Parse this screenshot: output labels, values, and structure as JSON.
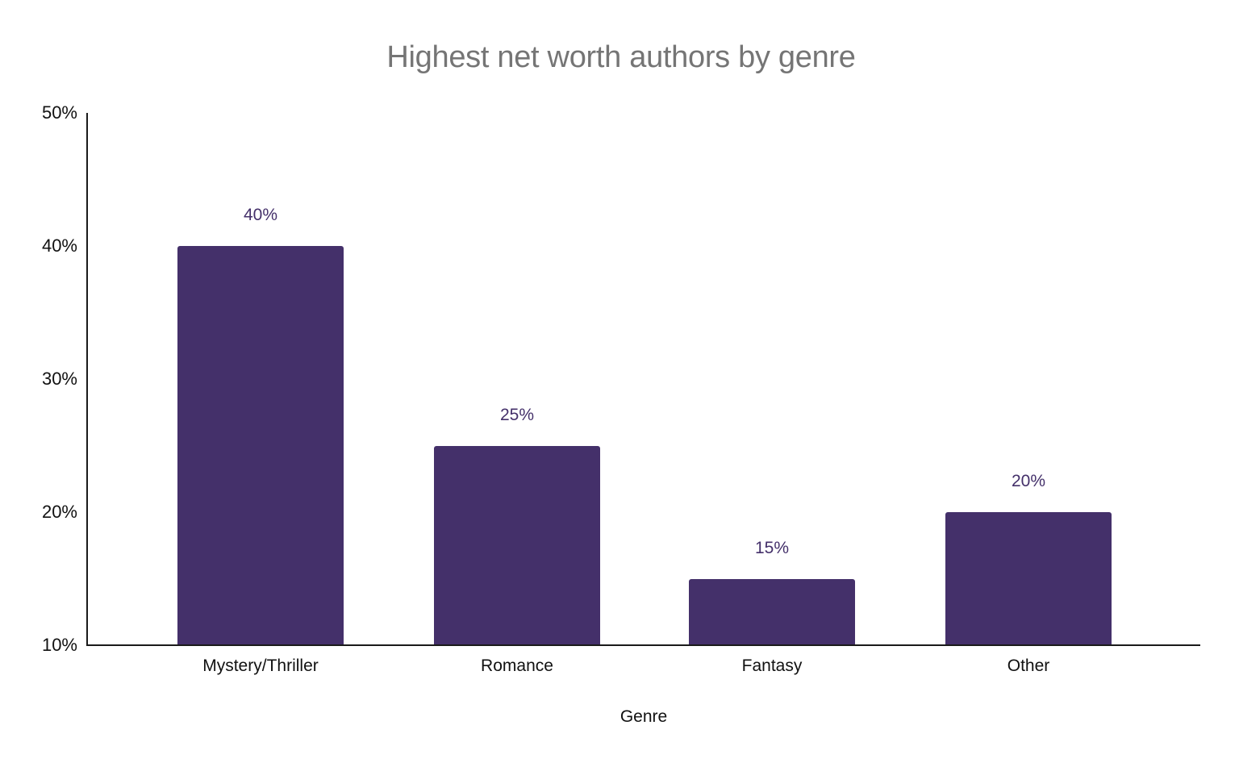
{
  "chart_data": {
    "type": "bar",
    "title": "Highest net worth authors by genre",
    "xlabel": "Genre",
    "ylabel": "",
    "categories": [
      "Mystery/Thriller",
      "Romance",
      "Fantasy",
      "Other"
    ],
    "values": [
      40,
      25,
      15,
      20
    ],
    "value_labels": [
      "40%",
      "25%",
      "15%",
      "20%"
    ],
    "ylim": [
      10,
      50
    ],
    "yticks": [
      10,
      20,
      30,
      40,
      50
    ],
    "ytick_labels": [
      "10%",
      "20%",
      "30%",
      "40%",
      "50%"
    ],
    "grid": false,
    "legend": null,
    "bar_color": "#44306a"
  },
  "title": "Highest net worth authors by genre",
  "x_axis": {
    "label": "Genre",
    "ticks": [
      "Mystery/Thriller",
      "Romance",
      "Fantasy",
      "Other"
    ]
  },
  "y_axis": {
    "ticks": [
      "50%",
      "40%",
      "30%",
      "20%",
      "10%"
    ]
  },
  "bars": [
    {
      "label": "40%"
    },
    {
      "label": "25%"
    },
    {
      "label": "15%"
    },
    {
      "label": "20%"
    }
  ]
}
